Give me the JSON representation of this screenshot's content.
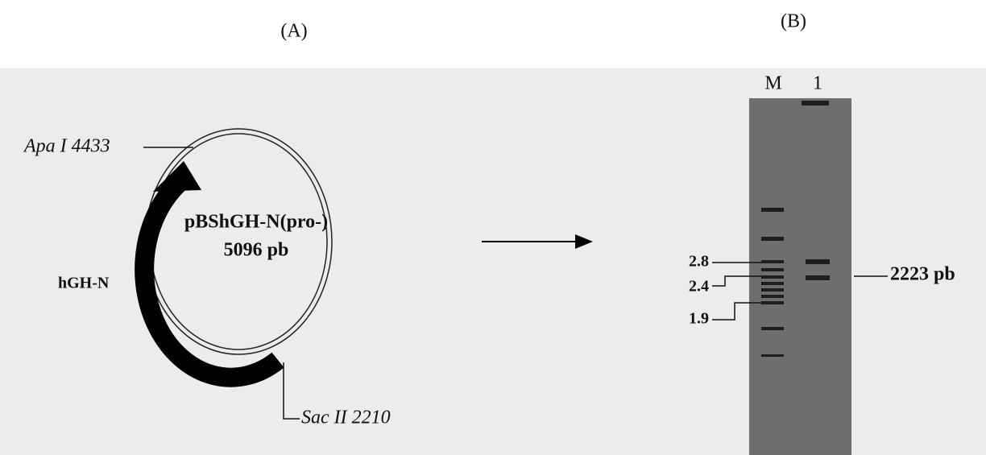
{
  "panel_a": {
    "label": "(A)",
    "apa_site": "Apa I 4433",
    "plasmid_name": "pBShGH-N(pro-)",
    "plasmid_size": "5096 pb",
    "gene": "hGH-N",
    "sac_site": "Sac II 2210"
  },
  "panel_b": {
    "label": "(B)",
    "lanes": [
      "M",
      "1"
    ],
    "markers": [
      "2.8",
      "2.4",
      "1.9"
    ],
    "band": "2223 pb"
  }
}
